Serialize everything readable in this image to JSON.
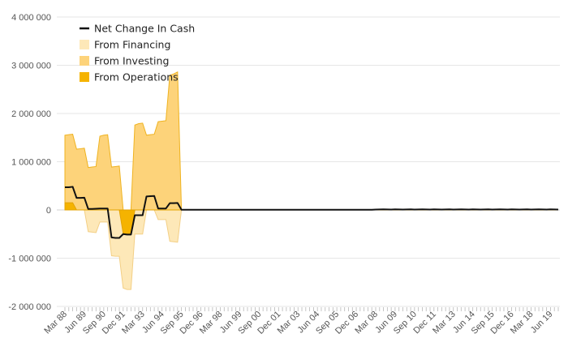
{
  "chart_data": {
    "type": "area",
    "title": "",
    "xlabel": "",
    "ylabel": "",
    "ylim": [
      -2000000,
      4000000
    ],
    "y_ticks": [
      4000000,
      3000000,
      2000000,
      1000000,
      0,
      -1000000,
      -2000000
    ],
    "y_tick_labels": [
      "4 000 000",
      "3 000 000",
      "2 000 000",
      "1 000 000",
      "0",
      "-1 000 000",
      "-2 000 000"
    ],
    "x_tick_labels": [
      "Mar 88",
      "Jun 89",
      "Sep 90",
      "Dec 91",
      "Mar 93",
      "Jun 94",
      "Sep 95",
      "Dec 96",
      "Mar 98",
      "Jun 99",
      "Sep 00",
      "Dec 01",
      "Mar 03",
      "Jun 04",
      "Sep 05",
      "Dec 06",
      "Mar 08",
      "Jun 09",
      "Sep 10",
      "Dec 11",
      "Mar 13",
      "Jun 14",
      "Sep 15",
      "Dec 16",
      "Mar 18",
      "Jun 19"
    ],
    "grid": true,
    "legend_position": "top-left",
    "colors": {
      "net": "#111111",
      "financing": "#fde8b8",
      "investing": "#fdd37a",
      "operations": "#f5b300",
      "financing_edge": "#f3cf85",
      "investing_edge": "#efb320",
      "operations_edge": "#e4a300"
    },
    "x_start": "1988-03",
    "x_step": "quarter",
    "n_quarters": 128,
    "series": [
      {
        "name": "Net Change In Cash",
        "kind": "line",
        "values": [
          470000,
          470000,
          480000,
          250000,
          250000,
          255000,
          20000,
          20000,
          25000,
          30000,
          30000,
          30000,
          -570000,
          -580000,
          -580000,
          -500000,
          -510000,
          -510000,
          -110000,
          -110000,
          -110000,
          280000,
          285000,
          290000,
          30000,
          30000,
          30000,
          140000,
          140000,
          145000,
          5000,
          5000,
          5000,
          5000,
          5000,
          5000,
          5000,
          5000,
          5000,
          5000,
          5000,
          5000,
          5000,
          5000,
          5000,
          5000,
          5000,
          5000,
          5000,
          5000,
          5000,
          5000,
          5000,
          5000,
          5000,
          5000,
          5000,
          5000,
          5000,
          5000,
          5000,
          5000,
          5000,
          5000,
          5000,
          5000,
          5000,
          5000,
          5000,
          5000,
          5000,
          5000,
          5000,
          5000,
          5000,
          5000,
          5000,
          5000,
          5000,
          5000,
          8000,
          10000,
          12000,
          10000,
          8000,
          12000,
          10000,
          8000,
          10000,
          12000,
          8000,
          10000,
          12000,
          10000,
          8000,
          12000,
          10000,
          8000,
          10000,
          12000,
          8000,
          10000,
          12000,
          10000,
          8000,
          12000,
          10000,
          8000,
          10000,
          12000,
          8000,
          10000,
          12000,
          10000,
          8000,
          12000,
          10000,
          8000,
          10000,
          12000,
          8000,
          10000,
          12000,
          10000,
          8000,
          12000,
          10000,
          8000
        ]
      },
      {
        "name": "From Financing",
        "kind": "area",
        "values": [
          0,
          0,
          0,
          0,
          0,
          0,
          -450000,
          -460000,
          -470000,
          -250000,
          -250000,
          -250000,
          -950000,
          -960000,
          -960000,
          -1620000,
          -1650000,
          -1650000,
          -500000,
          -500000,
          -500000,
          0,
          0,
          0,
          -200000,
          -200000,
          -200000,
          -650000,
          -660000,
          -670000,
          0,
          0,
          0,
          0,
          0,
          0,
          0,
          0,
          0,
          0,
          0,
          0,
          0,
          0,
          0,
          0,
          0,
          0,
          0,
          0,
          0,
          0,
          0,
          0,
          0,
          0,
          0,
          0,
          0,
          0,
          0,
          0,
          0,
          0,
          0,
          0,
          0,
          0,
          0,
          0,
          0,
          0,
          0,
          0,
          0,
          0,
          0,
          0,
          0,
          0,
          0,
          0,
          0,
          0,
          0,
          0,
          0,
          0,
          0,
          0,
          0,
          0,
          0,
          0,
          0,
          0,
          0,
          0,
          0,
          0,
          0,
          0,
          0,
          0,
          0,
          0,
          0,
          0,
          0,
          0,
          0,
          0,
          0,
          0,
          0,
          0,
          0,
          0,
          0,
          0,
          0,
          0,
          0,
          0,
          0,
          0,
          0,
          0
        ]
      },
      {
        "name": "From Investing",
        "kind": "area",
        "values": [
          1550000,
          1560000,
          1570000,
          1260000,
          1270000,
          1280000,
          880000,
          890000,
          900000,
          1530000,
          1550000,
          1560000,
          890000,
          900000,
          910000,
          0,
          0,
          0,
          1760000,
          1790000,
          1800000,
          1550000,
          1560000,
          1570000,
          1830000,
          1840000,
          1850000,
          2790000,
          2820000,
          2860000,
          0,
          0,
          0,
          0,
          0,
          0,
          0,
          0,
          0,
          0,
          0,
          0,
          0,
          0,
          0,
          0,
          0,
          0,
          0,
          0,
          0,
          0,
          0,
          0,
          0,
          0,
          0,
          0,
          0,
          0,
          0,
          0,
          0,
          0,
          0,
          0,
          0,
          0,
          0,
          0,
          0,
          0,
          0,
          0,
          0,
          0,
          0,
          0,
          0,
          0,
          0,
          0,
          0,
          0,
          0,
          0,
          0,
          0,
          0,
          0,
          0,
          0,
          0,
          0,
          0,
          0,
          0,
          0,
          0,
          0,
          0,
          0,
          0,
          0,
          0,
          0,
          0,
          0,
          0,
          0,
          0,
          0,
          0,
          0,
          0,
          0,
          0,
          0,
          0,
          0,
          0,
          0,
          0,
          0,
          0,
          0,
          0,
          0
        ]
      },
      {
        "name": "From Operations",
        "kind": "area",
        "values": [
          150000,
          150000,
          150000,
          0,
          0,
          0,
          0,
          0,
          0,
          0,
          0,
          0,
          0,
          0,
          0,
          -490000,
          -500000,
          -500000,
          0,
          0,
          0,
          0,
          0,
          0,
          0,
          0,
          0,
          0,
          0,
          0,
          0,
          0,
          0,
          0,
          0,
          0,
          0,
          0,
          0,
          0,
          0,
          0,
          0,
          0,
          0,
          0,
          0,
          0,
          0,
          0,
          0,
          0,
          0,
          0,
          0,
          0,
          0,
          0,
          0,
          0,
          0,
          0,
          0,
          0,
          0,
          0,
          0,
          0,
          0,
          0,
          0,
          0,
          0,
          0,
          0,
          0,
          0,
          0,
          0,
          0,
          0,
          0,
          0,
          0,
          0,
          0,
          0,
          0,
          0,
          0,
          0,
          0,
          0,
          0,
          0,
          0,
          0,
          0,
          0,
          0,
          0,
          0,
          0,
          0,
          0,
          0,
          0,
          0,
          0,
          0,
          0,
          0,
          0,
          0,
          0,
          0,
          0,
          0,
          0,
          0,
          0,
          0,
          0,
          0,
          0,
          0,
          0,
          0
        ]
      }
    ]
  }
}
